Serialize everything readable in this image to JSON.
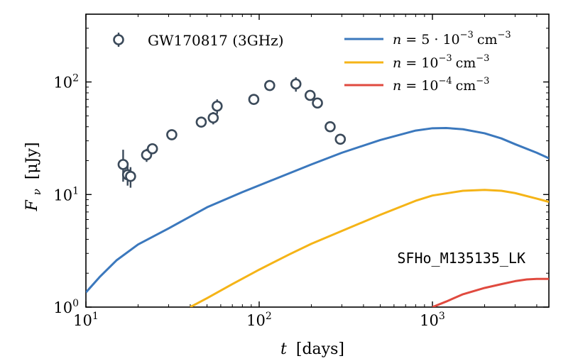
{
  "chart_data": {
    "type": "scatter",
    "xscale": "log",
    "yscale": "log",
    "xlim": [
      10,
      4700
    ],
    "ylim": [
      1,
      400
    ],
    "xlabel": {
      "var": "t",
      "unit": "[days]"
    },
    "ylabel": {
      "var": "F",
      "sub": "ν",
      "unit": "[μJy]"
    },
    "x_ticks": [
      {
        "value": 10,
        "base": "10",
        "exp": "1"
      },
      {
        "value": 100,
        "base": "10",
        "exp": "2"
      },
      {
        "value": 1000,
        "base": "10",
        "exp": "3"
      }
    ],
    "y_ticks": [
      {
        "value": 1,
        "base": "10",
        "exp": "0"
      },
      {
        "value": 10,
        "base": "10",
        "exp": "1"
      },
      {
        "value": 100,
        "base": "10",
        "exp": "2"
      }
    ],
    "annotation": "SFHo_M135135_LK",
    "observations": {
      "name": "GW170817 (3GHz)",
      "color": "#3b4a5a",
      "points": [
        {
          "x": 16.4,
          "y": 18.5,
          "err_lo": 5.5,
          "err_hi": 6.5
        },
        {
          "x": 17.4,
          "y": 15.0,
          "err_lo": 3.0,
          "err_hi": 3.0
        },
        {
          "x": 18.1,
          "y": 14.5,
          "err_lo": 3.0,
          "err_hi": 3.0
        },
        {
          "x": 22.4,
          "y": 22.5,
          "err_lo": 3.0,
          "err_hi": 3.0
        },
        {
          "x": 24.2,
          "y": 25.5,
          "err_lo": 2.5,
          "err_hi": 2.5
        },
        {
          "x": 31.3,
          "y": 34.0,
          "err_lo": 3.6,
          "err_hi": 3.6
        },
        {
          "x": 46.3,
          "y": 44.0,
          "err_lo": 4.0,
          "err_hi": 4.0
        },
        {
          "x": 54.3,
          "y": 48.0,
          "err_lo": 6.0,
          "err_hi": 6.0
        },
        {
          "x": 57.2,
          "y": 61.0,
          "err_lo": 9.0,
          "err_hi": 9.0
        },
        {
          "x": 93.1,
          "y": 70.0,
          "err_lo": 5.7,
          "err_hi": 5.7
        },
        {
          "x": 115.0,
          "y": 93.0,
          "err_lo": 6.0,
          "err_hi": 6.0
        },
        {
          "x": 162.9,
          "y": 96.0,
          "err_lo": 14.0,
          "err_hi": 14.0
        },
        {
          "x": 196.8,
          "y": 76.0,
          "err_lo": 7.0,
          "err_hi": 7.0
        },
        {
          "x": 216.9,
          "y": 65.0,
          "err_lo": 5.0,
          "err_hi": 5.0
        },
        {
          "x": 256.8,
          "y": 40.0,
          "err_lo": 3.0,
          "err_hi": 3.0
        },
        {
          "x": 294.0,
          "y": 31.0,
          "err_lo": 2.7,
          "err_hi": 2.7
        }
      ]
    },
    "series": [
      {
        "name": "n = 5·10^-3 cm^-3",
        "label": {
          "lhs": "n = 5 · 10",
          "exp": "−3",
          "unit": "cm",
          "unit_exp": "−3"
        },
        "color": "#3b78bd",
        "x": [
          10,
          12,
          15,
          20,
          30,
          50,
          80,
          120,
          200,
          300,
          500,
          800,
          1000,
          1200,
          1500,
          2000,
          2500,
          3000,
          4000,
          4700
        ],
        "y": [
          1.35,
          1.85,
          2.6,
          3.6,
          5.0,
          7.7,
          10.5,
          13.5,
          18.5,
          23.5,
          30.5,
          37.0,
          38.8,
          39.0,
          38.0,
          35.0,
          31.5,
          28.0,
          23.5,
          21.0
        ]
      },
      {
        "name": "n = 10^-3 cm^-3",
        "label": {
          "lhs": "n = 10",
          "exp": "−3",
          "unit": "cm",
          "unit_exp": "−3"
        },
        "color": "#f5b417",
        "x": [
          40,
          50,
          70,
          100,
          150,
          200,
          300,
          500,
          800,
          1000,
          1500,
          2000,
          2500,
          3000,
          4000,
          4700
        ],
        "y": [
          1.0,
          1.2,
          1.6,
          2.15,
          2.95,
          3.65,
          4.75,
          6.6,
          8.8,
          9.8,
          10.8,
          11.0,
          10.8,
          10.3,
          9.2,
          8.6
        ]
      },
      {
        "name": "n = 10^-4 cm^-3",
        "label": {
          "lhs": "n = 10",
          "exp": "−4",
          "unit": "cm",
          "unit_exp": "−3"
        },
        "color": "#e04a3f",
        "x": [
          1000,
          1200,
          1500,
          2000,
          2500,
          3000,
          3500,
          4000,
          4700
        ],
        "y": [
          1.0,
          1.12,
          1.3,
          1.48,
          1.6,
          1.7,
          1.76,
          1.78,
          1.78
        ]
      }
    ]
  }
}
